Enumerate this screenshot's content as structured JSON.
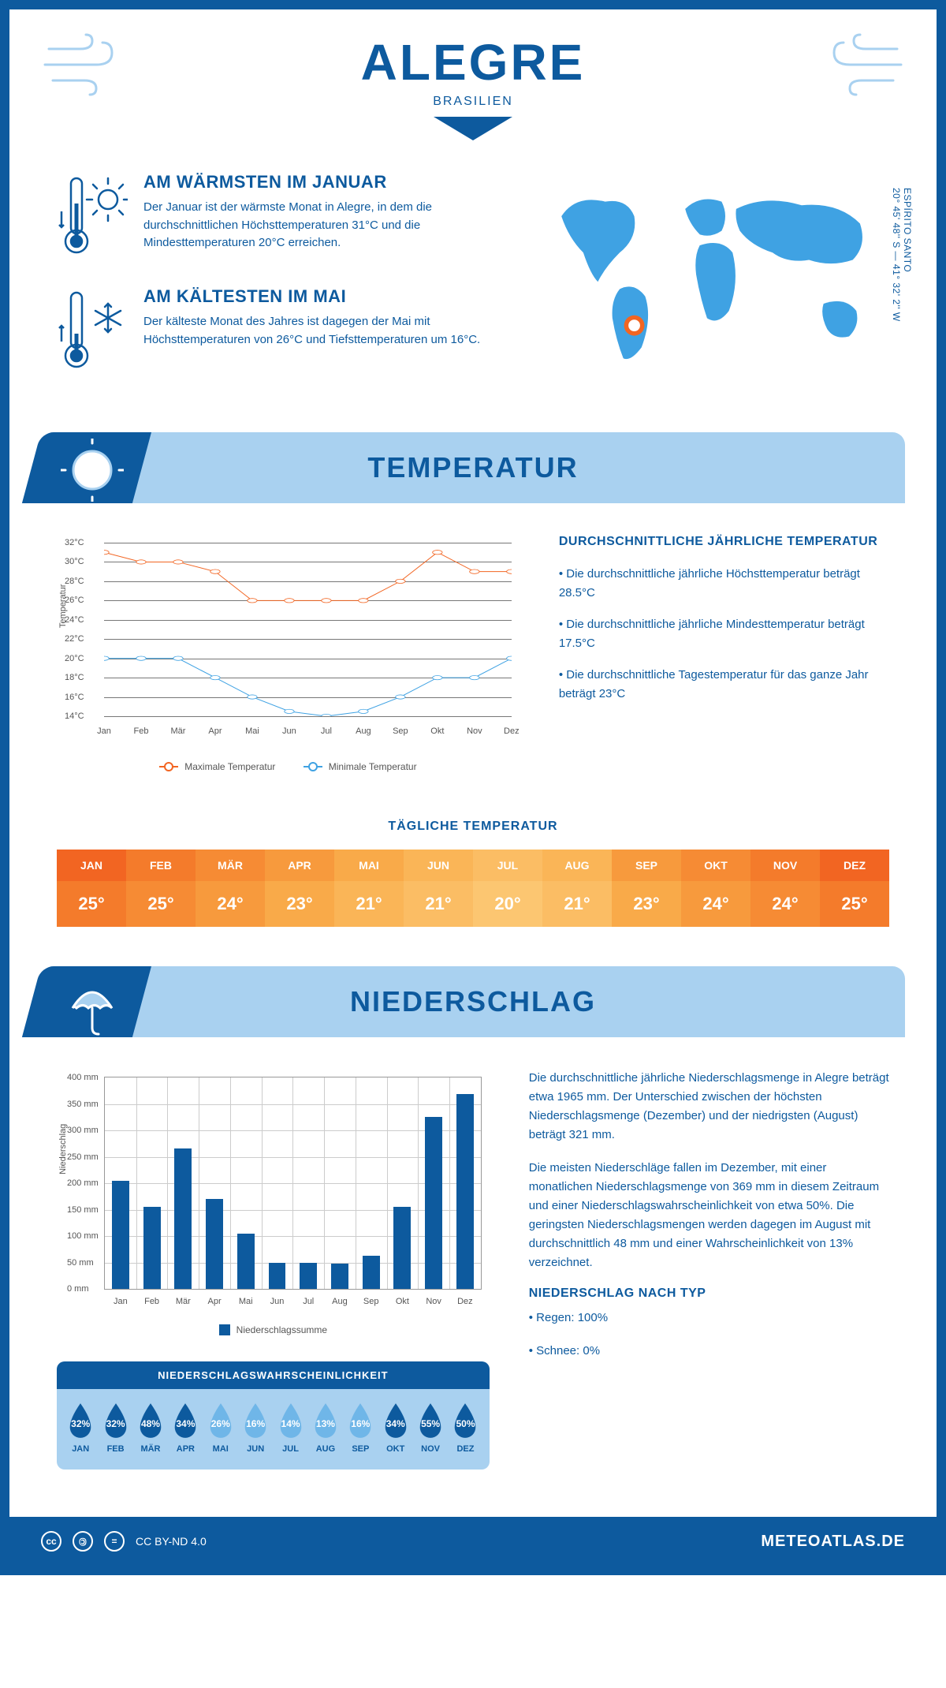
{
  "header": {
    "city": "ALEGRE",
    "country": "BRASILIEN"
  },
  "coords": {
    "line1": "ESPÍRITO SANTO",
    "line2": "20° 45' 48'' S — 41° 32' 2'' W"
  },
  "intro": {
    "warm": {
      "title": "AM WÄRMSTEN IM JANUAR",
      "text": "Der Januar ist der wärmste Monat in Alegre, in dem die durchschnittlichen Höchsttemperaturen 31°C und die Mindesttemperaturen 20°C erreichen."
    },
    "cold": {
      "title": "AM KÄLTESTEN IM MAI",
      "text": "Der kälteste Monat des Jahres ist dagegen der Mai mit Höchsttemperaturen von 26°C und Tiefsttemperaturen um 16°C."
    }
  },
  "temp_section": {
    "heading": "TEMPERATUR",
    "info_heading": "DURCHSCHNITTLICHE JÄHRLICHE TEMPERATUR",
    "bullet1": "• Die durchschnittliche jährliche Höchsttemperatur beträgt 28.5°C",
    "bullet2": "• Die durchschnittliche jährliche Mindesttemperatur beträgt 17.5°C",
    "bullet3": "• Die durchschnittliche Tagestemperatur für das ganze Jahr beträgt 23°C"
  },
  "temp_chart": {
    "type": "line",
    "months": [
      "Jan",
      "Feb",
      "Mär",
      "Apr",
      "Mai",
      "Jun",
      "Jul",
      "Aug",
      "Sep",
      "Okt",
      "Nov",
      "Dez"
    ],
    "max": {
      "values": [
        31,
        30,
        30,
        29,
        26,
        26,
        26,
        26,
        28,
        31,
        29,
        29
      ],
      "color": "#f26522",
      "label": "Maximale Temperatur"
    },
    "min": {
      "values": [
        20,
        20,
        20,
        18,
        16,
        14.5,
        14,
        14.5,
        16,
        18,
        18,
        20
      ],
      "color": "#3fa2e3",
      "label": "Minimale Temperatur"
    },
    "y_min": 14,
    "y_max": 32,
    "y_step": 2,
    "y_unit": "°C",
    "y_axis_label": "Temperatur",
    "grid_color": "#777",
    "line_width": 2,
    "marker_size": 4,
    "background": "#ffffff"
  },
  "daily_temp": {
    "heading": "TÄGLICHE TEMPERATUR",
    "months": [
      "JAN",
      "FEB",
      "MÄR",
      "APR",
      "MAI",
      "JUN",
      "JUL",
      "AUG",
      "SEP",
      "OKT",
      "NOV",
      "DEZ"
    ],
    "values": [
      "25°",
      "25°",
      "24°",
      "23°",
      "21°",
      "21°",
      "20°",
      "21°",
      "23°",
      "24°",
      "24°",
      "25°"
    ],
    "head_colors": [
      "#f26522",
      "#f47b2b",
      "#f68b34",
      "#f79a3d",
      "#f9aa49",
      "#fab557",
      "#fbbd64",
      "#fab557",
      "#f79a3d",
      "#f68b34",
      "#f47b2b",
      "#f26522"
    ],
    "val_colors": [
      "#f47b2b",
      "#f68b34",
      "#f79a3d",
      "#f9aa49",
      "#fab557",
      "#fbbd64",
      "#fcc671",
      "#fbbd64",
      "#f9aa49",
      "#f79a3d",
      "#f68b34",
      "#f47b2b"
    ]
  },
  "precip_section": {
    "heading": "NIEDERSCHLAG",
    "para1": "Die durchschnittliche jährliche Niederschlagsmenge in Alegre beträgt etwa 1965 mm. Der Unterschied zwischen der höchsten Niederschlagsmenge (Dezember) und der niedrigsten (August) beträgt 321 mm.",
    "para2": "Die meisten Niederschläge fallen im Dezember, mit einer monatlichen Niederschlagsmenge von 369 mm in diesem Zeitraum und einer Niederschlagswahrscheinlichkeit von etwa 50%. Die geringsten Niederschlagsmengen werden dagegen im August mit durchschnittlich 48 mm und einer Wahrscheinlichkeit von 13% verzeichnet.",
    "type_heading": "NIEDERSCHLAG NACH TYP",
    "type1": "• Regen: 100%",
    "type2": "• Schnee: 0%"
  },
  "precip_chart": {
    "type": "bar",
    "months": [
      "Jan",
      "Feb",
      "Mär",
      "Apr",
      "Mai",
      "Jun",
      "Jul",
      "Aug",
      "Sep",
      "Okt",
      "Nov",
      "Dez"
    ],
    "values": [
      205,
      155,
      265,
      170,
      105,
      50,
      50,
      48,
      62,
      155,
      325,
      369
    ],
    "y_min": 0,
    "y_max": 400,
    "y_step": 50,
    "y_unit": " mm",
    "y_axis_label": "Niederschlag",
    "bar_color": "#0d5a9e",
    "grid_color": "#cccccc",
    "bar_width": 0.55,
    "legend_label": "Niederschlagssumme"
  },
  "prob": {
    "heading": "NIEDERSCHLAGSWAHRSCHEINLICHKEIT",
    "months": [
      "JAN",
      "FEB",
      "MÄR",
      "APR",
      "MAI",
      "JUN",
      "JUL",
      "AUG",
      "SEP",
      "OKT",
      "NOV",
      "DEZ"
    ],
    "values": [
      "32%",
      "32%",
      "48%",
      "34%",
      "26%",
      "16%",
      "14%",
      "13%",
      "16%",
      "34%",
      "55%",
      "50%"
    ],
    "dark": "#0d5a9e",
    "light": "#6fb6e8"
  },
  "footer": {
    "license": "CC BY-ND 4.0",
    "site": "METEOATLAS.DE"
  },
  "colors": {
    "primary": "#0d5a9e",
    "light_blue": "#a9d1f0",
    "accent_blue": "#3fa2e3"
  }
}
